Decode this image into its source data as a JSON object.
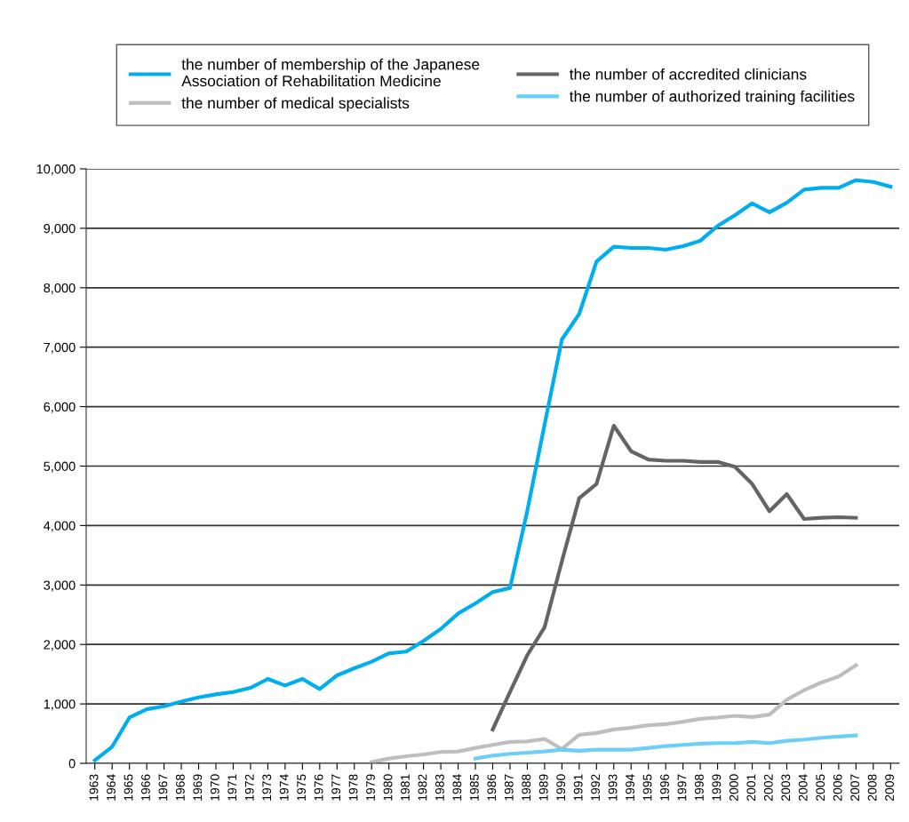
{
  "chart_data": {
    "type": "line",
    "categories": [
      "1963",
      "1964",
      "1965",
      "1966",
      "1967",
      "1968",
      "1969",
      "1970",
      "1971",
      "1972",
      "1973",
      "1974",
      "1975",
      "1976",
      "1977",
      "1978",
      "1979",
      "1980",
      "1981",
      "1982",
      "1983",
      "1984",
      "1985",
      "1986",
      "1987",
      "1988",
      "1989",
      "1990",
      "1991",
      "1992",
      "1993",
      "1994",
      "1995",
      "1996",
      "1997",
      "1998",
      "1999",
      "2000",
      "2001",
      "2002",
      "2003",
      "2004",
      "2005",
      "2006",
      "2007",
      "2008",
      "2009"
    ],
    "series": [
      {
        "name": "the number of membership of the Japanese\nAssociation of Rehabilitation Medicine",
        "color": "#00aeef",
        "values": [
          50,
          280,
          770,
          910,
          960,
          1040,
          1110,
          1160,
          1200,
          1270,
          1420,
          1310,
          1420,
          1250,
          1480,
          1600,
          1710,
          1850,
          1880,
          2060,
          2260,
          2520,
          2690,
          2880,
          2950,
          4250,
          5700,
          7130,
          7560,
          8440,
          8690,
          8670,
          8670,
          8640,
          8700,
          8790,
          9040,
          9220,
          9420,
          9270,
          9430,
          9650,
          9680,
          9680,
          9810,
          9780,
          9700
        ]
      },
      {
        "name": "the number of medical specialists",
        "color": "#bcbec0",
        "values": [
          null,
          null,
          null,
          null,
          null,
          null,
          null,
          null,
          null,
          null,
          null,
          null,
          null,
          null,
          null,
          null,
          20,
          80,
          120,
          150,
          190,
          200,
          260,
          310,
          360,
          370,
          410,
          240,
          480,
          510,
          570,
          600,
          640,
          660,
          700,
          750,
          770,
          800,
          780,
          820,
          1070,
          1230,
          1360,
          1460,
          1650,
          null,
          null
        ]
      },
      {
        "name": "the number of accredited clinicians",
        "color": "#636466",
        "values": [
          null,
          null,
          null,
          null,
          null,
          null,
          null,
          null,
          null,
          null,
          null,
          null,
          null,
          null,
          null,
          null,
          null,
          null,
          null,
          null,
          null,
          null,
          null,
          570,
          1200,
          1820,
          2290,
          3400,
          4460,
          4700,
          5680,
          5250,
          5110,
          5090,
          5090,
          5070,
          5070,
          4990,
          4700,
          4240,
          4530,
          4110,
          4130,
          4140,
          4130,
          null,
          null
        ]
      },
      {
        "name": "the number of authorized training facilities",
        "color": "#6dcff6",
        "values": [
          null,
          null,
          null,
          null,
          null,
          null,
          null,
          null,
          null,
          null,
          null,
          null,
          null,
          null,
          null,
          null,
          null,
          null,
          null,
          null,
          null,
          null,
          80,
          130,
          160,
          180,
          200,
          230,
          210,
          230,
          230,
          230,
          260,
          290,
          310,
          330,
          340,
          340,
          360,
          340,
          380,
          400,
          430,
          450,
          470,
          null,
          null
        ]
      }
    ],
    "ylim": [
      0,
      10000
    ],
    "yticks": [
      {
        "value": 0,
        "label": "0"
      },
      {
        "value": 1000,
        "label": "1,000"
      },
      {
        "value": 2000,
        "label": "2,000"
      },
      {
        "value": 3000,
        "label": "3,000"
      },
      {
        "value": 4000,
        "label": "4,000"
      },
      {
        "value": 5000,
        "label": "5,000"
      },
      {
        "value": 6000,
        "label": "6,000"
      },
      {
        "value": 7000,
        "label": "7,000"
      },
      {
        "value": 8000,
        "label": "8,000"
      },
      {
        "value": 9000,
        "label": "9,000"
      },
      {
        "value": 10000,
        "label": "10,000"
      }
    ],
    "grid": "y",
    "legend": "top",
    "marker": "none",
    "line_style": "solid"
  }
}
